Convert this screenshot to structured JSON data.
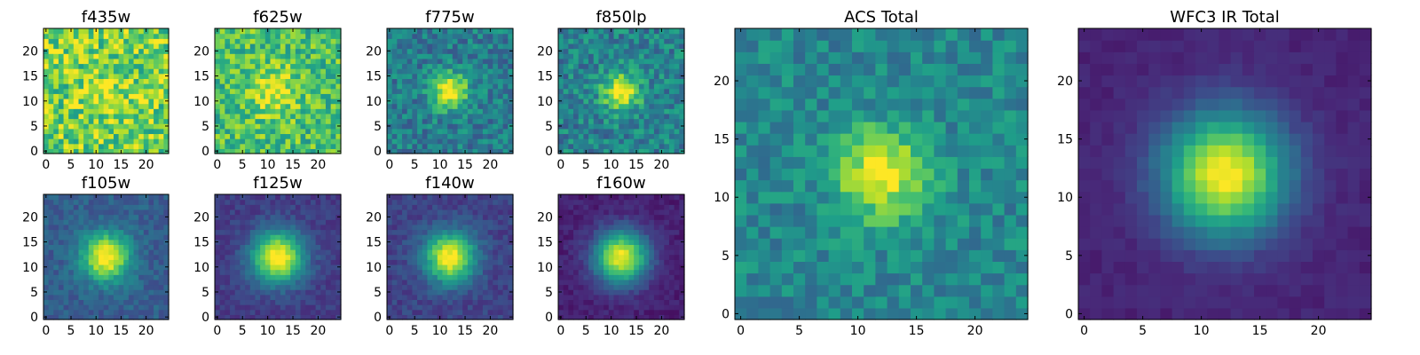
{
  "figure": {
    "colormap": "viridis",
    "colormap_stops": [
      "#440154",
      "#482878",
      "#3e4989",
      "#31688e",
      "#26828e",
      "#1f9e89",
      "#35b779",
      "#6ece58",
      "#b5de2b",
      "#fde725"
    ]
  },
  "chart_data": [
    {
      "type": "heatmap",
      "title": "f435w",
      "grid_size": 25,
      "source_center": [
        12,
        12
      ],
      "source_width": 3.0,
      "peak": 0.15,
      "background": 0.78,
      "noise": 0.24,
      "seed": 11,
      "xticks": [
        "0",
        "5",
        "10",
        "15",
        "20"
      ],
      "yticks": [
        "0",
        "5",
        "10",
        "15",
        "20"
      ],
      "xlim": [
        0,
        24
      ],
      "ylim": [
        0,
        24
      ]
    },
    {
      "type": "heatmap",
      "title": "f625w",
      "grid_size": 25,
      "source_center": [
        11,
        12
      ],
      "source_width": 3.3,
      "peak": 0.28,
      "background": 0.7,
      "noise": 0.2,
      "seed": 23,
      "xticks": [
        "0",
        "5",
        "10",
        "15",
        "20"
      ],
      "yticks": [
        "0",
        "5",
        "10",
        "15",
        "20"
      ],
      "xlim": [
        0,
        24
      ],
      "ylim": [
        0,
        24
      ]
    },
    {
      "type": "heatmap",
      "title": "f775w",
      "grid_size": 25,
      "source_center": [
        12,
        12
      ],
      "source_width": 2.5,
      "peak": 0.62,
      "background": 0.42,
      "noise": 0.16,
      "seed": 37,
      "xticks": [
        "0",
        "5",
        "10",
        "15",
        "20"
      ],
      "yticks": [
        "0",
        "5",
        "10",
        "15",
        "20"
      ],
      "xlim": [
        0,
        24
      ],
      "ylim": [
        0,
        24
      ]
    },
    {
      "type": "heatmap",
      "title": "f850lp",
      "grid_size": 25,
      "source_center": [
        12,
        12
      ],
      "source_width": 2.6,
      "peak": 0.58,
      "background": 0.44,
      "noise": 0.17,
      "seed": 41,
      "xticks": [
        "0",
        "5",
        "10",
        "15",
        "20"
      ],
      "yticks": [
        "0",
        "5",
        "10",
        "15",
        "20"
      ],
      "xlim": [
        0,
        24
      ],
      "ylim": [
        0,
        24
      ]
    },
    {
      "type": "heatmap",
      "title": "f105w",
      "grid_size": 25,
      "source_center": [
        12,
        12
      ],
      "source_width": 3.3,
      "peak": 0.74,
      "background": 0.3,
      "noise": 0.08,
      "seed": 53,
      "xticks": [
        "0",
        "5",
        "10",
        "15",
        "20"
      ],
      "yticks": [
        "0",
        "5",
        "10",
        "15",
        "20"
      ],
      "xlim": [
        0,
        24
      ],
      "ylim": [
        0,
        24
      ]
    },
    {
      "type": "heatmap",
      "title": "f125w",
      "grid_size": 25,
      "source_center": [
        12,
        12
      ],
      "source_width": 3.6,
      "peak": 0.86,
      "background": 0.18,
      "noise": 0.06,
      "seed": 67,
      "xticks": [
        "0",
        "5",
        "10",
        "15",
        "20"
      ],
      "yticks": [
        "0",
        "5",
        "10",
        "15",
        "20"
      ],
      "xlim": [
        0,
        24
      ],
      "ylim": [
        0,
        24
      ]
    },
    {
      "type": "heatmap",
      "title": "f140w",
      "grid_size": 25,
      "source_center": [
        12,
        12
      ],
      "source_width": 3.5,
      "peak": 0.82,
      "background": 0.2,
      "noise": 0.07,
      "seed": 71,
      "xticks": [
        "0",
        "5",
        "10",
        "15",
        "20"
      ],
      "yticks": [
        "0",
        "5",
        "10",
        "15",
        "20"
      ],
      "xlim": [
        0,
        24
      ],
      "ylim": [
        0,
        24
      ]
    },
    {
      "type": "heatmap",
      "title": "f160w",
      "grid_size": 25,
      "source_center": [
        12,
        12
      ],
      "source_width": 3.7,
      "peak": 0.9,
      "background": 0.09,
      "noise": 0.05,
      "seed": 83,
      "xticks": [
        "0",
        "5",
        "10",
        "15",
        "20"
      ],
      "yticks": [
        "0",
        "5",
        "10",
        "15",
        "20"
      ],
      "xlim": [
        0,
        24
      ],
      "ylim": [
        0,
        24
      ]
    },
    {
      "type": "heatmap",
      "title": "ACS Total",
      "grid_size": 25,
      "source_center": [
        12,
        12
      ],
      "source_width": 2.7,
      "peak": 0.55,
      "background": 0.46,
      "noise": 0.13,
      "seed": 97,
      "xticks": [
        "0",
        "5",
        "10",
        "15",
        "20"
      ],
      "yticks": [
        "0",
        "5",
        "10",
        "15",
        "20"
      ],
      "xlim": [
        0,
        24
      ],
      "ylim": [
        0,
        24
      ]
    },
    {
      "type": "heatmap",
      "title": "WFC3 IR Total",
      "grid_size": 25,
      "source_center": [
        12,
        12
      ],
      "source_width": 3.7,
      "peak": 0.9,
      "background": 0.1,
      "noise": 0.03,
      "seed": 103,
      "xticks": [
        "0",
        "5",
        "10",
        "15",
        "20"
      ],
      "yticks": [
        "0",
        "5",
        "10",
        "15",
        "20"
      ],
      "xlim": [
        0,
        24
      ],
      "ylim": [
        0,
        24
      ]
    }
  ]
}
